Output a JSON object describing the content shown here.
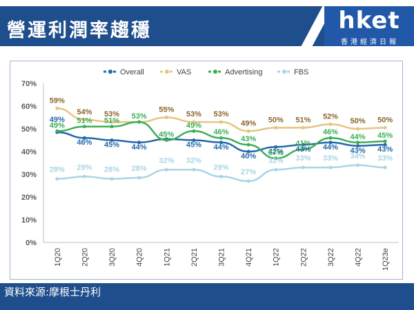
{
  "header": {
    "title": "營運利潤率趨穩"
  },
  "logo": {
    "name": "hket",
    "subtitle": "香港經濟日報"
  },
  "footer": {
    "source": "資料來源:摩根士丹利"
  },
  "colors": {
    "Overall": "#2268a8",
    "VAS": "#e6c480",
    "Advertising": "#3cae54",
    "FBS": "#a9d4e4",
    "label_VAS": "#8a6428",
    "label_Overall": "#2268a8",
    "label_Advertising": "#3cae54",
    "label_FBS": "#a9d4e4"
  },
  "chart_data": {
    "type": "line",
    "categories": [
      "1Q20",
      "2Q20",
      "3Q20",
      "4Q20",
      "1Q21",
      "2Q21",
      "3Q21",
      "4Q21",
      "1Q22",
      "2Q22",
      "3Q22",
      "4Q22",
      "1Q23e"
    ],
    "yticks": [
      "0%",
      "10%",
      "20%",
      "30%",
      "40%",
      "50%",
      "60%",
      "70%"
    ],
    "ylim": [
      0,
      70
    ],
    "legend_position": "top",
    "grid": false,
    "series": [
      {
        "name": "Overall",
        "values": [
          48.5,
          46,
          45,
          44,
          45.5,
          45,
          44,
          40,
          42,
          43,
          44,
          42.5,
          43
        ],
        "labels": [
          "",
          "46%",
          "45%",
          "44%",
          "",
          "45%",
          "44%",
          "40%",
          "42%",
          "43%",
          "44%",
          "43%",
          "43%"
        ]
      },
      {
        "name": "VAS",
        "values": [
          59,
          54,
          53,
          53,
          55,
          53,
          53,
          49,
          50.5,
          50.5,
          52,
          50,
          50.5
        ],
        "labels": [
          "59%",
          "54%",
          "53%",
          "",
          "55%",
          "53%",
          "53%",
          "49%",
          "50%",
          "51%",
          "52%",
          "50%",
          "50%"
        ]
      },
      {
        "name": "Advertising",
        "values": [
          49,
          51,
          51,
          53,
          45,
          49,
          46,
          43,
          37,
          41,
          46,
          44,
          44.5
        ],
        "labels": [
          "49%",
          "51%",
          "51%",
          "53%",
          "45%",
          "49%",
          "46%",
          "43%",
          "37%",
          "41%",
          "46%",
          "44%",
          "45%"
        ]
      },
      {
        "name": "FBS",
        "values": [
          28,
          29,
          28,
          28.5,
          32,
          32,
          29,
          27,
          32,
          33,
          33,
          34,
          33
        ],
        "labels": [
          "28%",
          "29%",
          "28%",
          "28%",
          "32%",
          "32%",
          "29%",
          "27%",
          "32%",
          "33%",
          "33%",
          "34%",
          "33%"
        ]
      }
    ],
    "extra_labels": [
      {
        "series": "Overall",
        "index": 0,
        "text": "49%"
      }
    ]
  }
}
